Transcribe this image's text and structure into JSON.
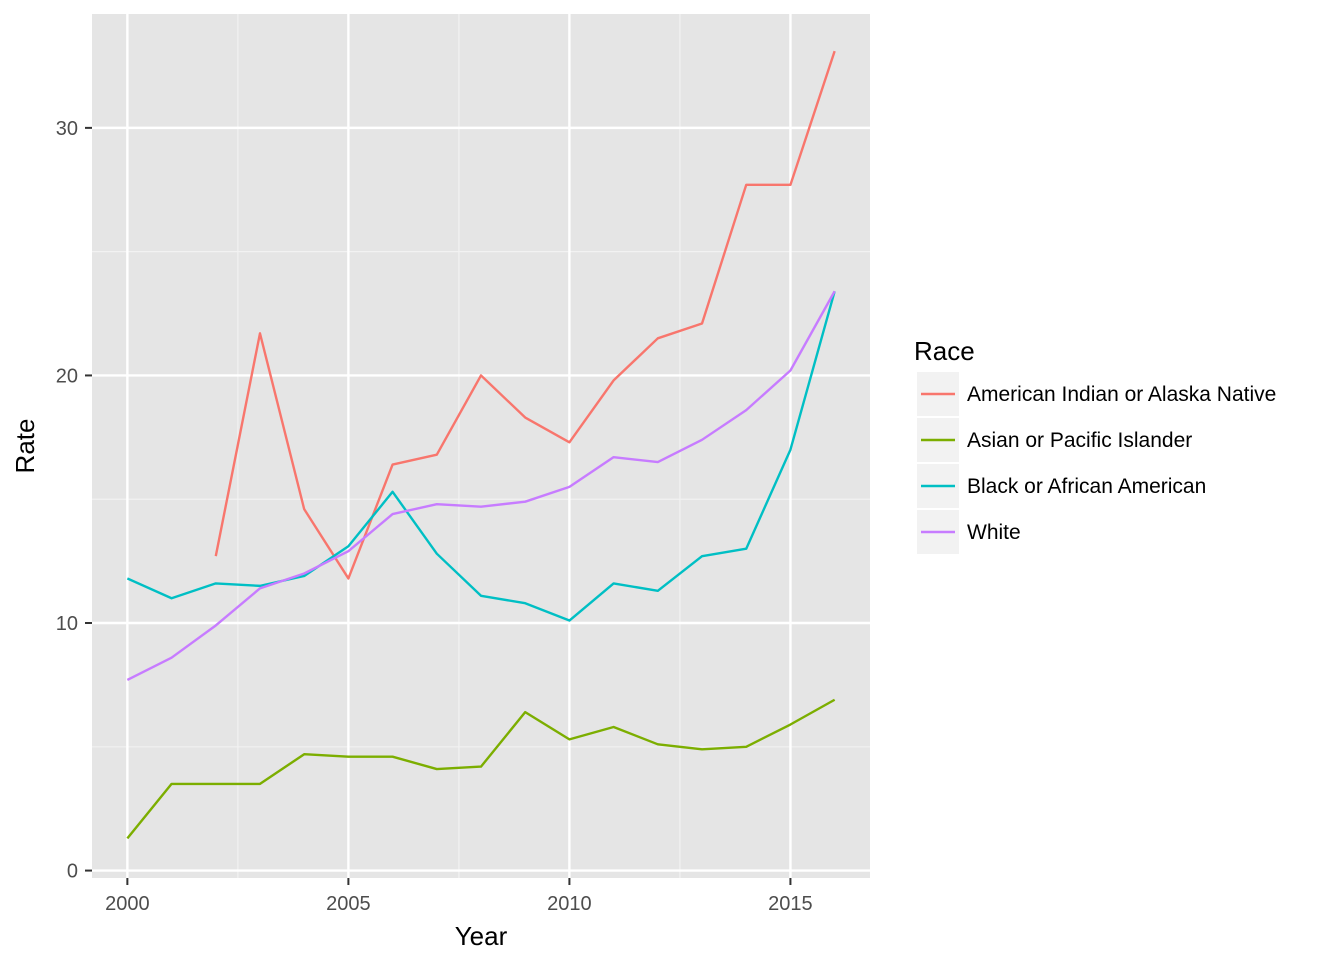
{
  "chart_data": {
    "type": "line",
    "xlabel": "Year",
    "ylabel": "Rate",
    "xlim": [
      1999.2,
      2016.8
    ],
    "ylim": [
      -0.3,
      34.6
    ],
    "x_ticks": [
      2000,
      2005,
      2010,
      2015
    ],
    "y_ticks": [
      0,
      10,
      20,
      30
    ],
    "grid": true,
    "background": "#e5e5e5",
    "legend": {
      "title": "Race",
      "position": "right"
    },
    "series": [
      {
        "name": "American Indian or Alaska Native",
        "color": "#f8766d",
        "points": [
          [
            2002,
            12.7
          ],
          [
            2003,
            21.7
          ],
          [
            2004,
            14.6
          ],
          [
            2005,
            11.8
          ],
          [
            2006,
            16.4
          ],
          [
            2007,
            16.8
          ],
          [
            2008,
            20.0
          ],
          [
            2009,
            18.3
          ],
          [
            2010,
            17.3
          ],
          [
            2011,
            19.8
          ],
          [
            2012,
            21.5
          ],
          [
            2013,
            22.1
          ],
          [
            2014,
            27.7
          ],
          [
            2015,
            27.7
          ],
          [
            2016,
            33.1
          ]
        ]
      },
      {
        "name": "Asian or Pacific Islander",
        "color": "#7cae00",
        "points": [
          [
            2000,
            1.3
          ],
          [
            2001,
            3.5
          ],
          [
            2002,
            3.5
          ],
          [
            2003,
            3.5
          ],
          [
            2004,
            4.7
          ],
          [
            2005,
            4.6
          ],
          [
            2006,
            4.6
          ],
          [
            2007,
            4.1
          ],
          [
            2008,
            4.2
          ],
          [
            2009,
            6.4
          ],
          [
            2010,
            5.3
          ],
          [
            2011,
            5.8
          ],
          [
            2012,
            5.1
          ],
          [
            2013,
            4.9
          ],
          [
            2014,
            5.0
          ],
          [
            2015,
            5.9
          ],
          [
            2016,
            6.9
          ]
        ]
      },
      {
        "name": "Black or African American",
        "color": "#00bfc4",
        "points": [
          [
            2000,
            11.8
          ],
          [
            2001,
            11.0
          ],
          [
            2002,
            11.6
          ],
          [
            2003,
            11.5
          ],
          [
            2004,
            11.9
          ],
          [
            2005,
            13.1
          ],
          [
            2006,
            15.3
          ],
          [
            2007,
            12.8
          ],
          [
            2008,
            11.1
          ],
          [
            2009,
            10.8
          ],
          [
            2010,
            10.1
          ],
          [
            2011,
            11.6
          ],
          [
            2012,
            11.3
          ],
          [
            2013,
            12.7
          ],
          [
            2014,
            13.0
          ],
          [
            2015,
            17.0
          ],
          [
            2016,
            23.4
          ]
        ]
      },
      {
        "name": "White",
        "color": "#c77cff",
        "points": [
          [
            2000,
            7.7
          ],
          [
            2001,
            8.6
          ],
          [
            2002,
            9.9
          ],
          [
            2003,
            11.4
          ],
          [
            2004,
            12.0
          ],
          [
            2005,
            12.9
          ],
          [
            2006,
            14.4
          ],
          [
            2007,
            14.8
          ],
          [
            2008,
            14.7
          ],
          [
            2009,
            14.9
          ],
          [
            2010,
            15.5
          ],
          [
            2011,
            16.7
          ],
          [
            2012,
            16.5
          ],
          [
            2013,
            17.4
          ],
          [
            2014,
            18.6
          ],
          [
            2015,
            20.2
          ],
          [
            2016,
            23.4
          ]
        ]
      }
    ]
  }
}
